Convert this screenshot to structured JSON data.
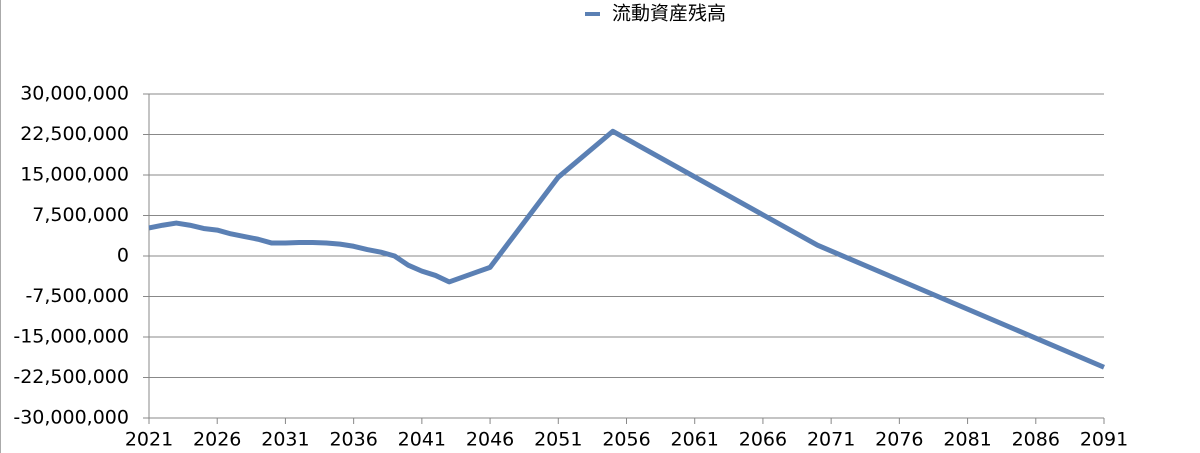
{
  "chart_data": {
    "type": "line",
    "x": [
      2021,
      2022,
      2023,
      2024,
      2025,
      2026,
      2027,
      2028,
      2029,
      2030,
      2031,
      2032,
      2033,
      2034,
      2035,
      2036,
      2037,
      2038,
      2039,
      2040,
      2041,
      2042,
      2043,
      2044,
      2045,
      2046,
      2051,
      2055,
      2070,
      2091
    ],
    "series": [
      {
        "name": "流動資産残高",
        "color": "#5b80b4",
        "values": [
          5200000,
          5700000,
          6100000,
          5700000,
          5100000,
          4800000,
          4100000,
          3600000,
          3100000,
          2400000,
          2400000,
          2500000,
          2500000,
          2400000,
          2200000,
          1800000,
          1200000,
          700000,
          0,
          -1700000,
          -2800000,
          -3600000,
          -4800000,
          -3900000,
          -3000000,
          -2100000,
          14600000,
          23100000,
          2000000,
          -20600000
        ]
      }
    ],
    "xlim": [
      2021,
      2091
    ],
    "xticks": [
      2021,
      2026,
      2031,
      2036,
      2041,
      2046,
      2051,
      2056,
      2061,
      2066,
      2071,
      2076,
      2081,
      2086,
      2091
    ],
    "ylim": [
      -30000000,
      30000000
    ],
    "yticks": [
      {
        "value": -30000000,
        "label": "-30,000,000"
      },
      {
        "value": -22500000,
        "label": "-22,500,000"
      },
      {
        "value": -15000000,
        "label": "-15,000,000"
      },
      {
        "value": -7500000,
        "label": "-7,500,000"
      },
      0,
      {
        "value": 7500000,
        "label": "7,500,000"
      },
      {
        "value": 15000000,
        "label": "15,000,000"
      },
      {
        "value": 22500000,
        "label": "22,500,000"
      },
      {
        "value": 30000000,
        "label": "30,000,000"
      }
    ],
    "grid": true,
    "legend": "top"
  }
}
